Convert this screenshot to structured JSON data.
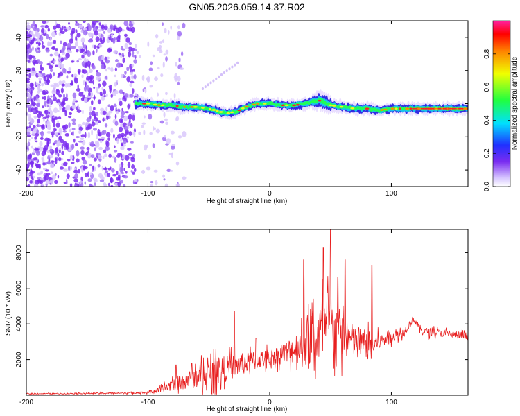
{
  "figure_title": "GN05.2026.059.14.37.R02",
  "colors": {
    "snr_line": "#e82020",
    "scatter_noise": "#7a2cf0",
    "axis": "#000000"
  },
  "chart_data": [
    {
      "type": "heatmap",
      "name": "spectrogram",
      "xlabel": "Height of straight line (km)",
      "ylabel": "Frequency (Hz)",
      "xlim": [
        -200,
        163
      ],
      "ylim": [
        -50,
        50
      ],
      "xticks": [
        -200,
        -100,
        0,
        100
      ],
      "yticks": [
        -40,
        -20,
        0,
        20,
        40
      ],
      "ridge": {
        "x": [
          -110,
          -100,
          -90,
          -80,
          -70,
          -60,
          -50,
          -45,
          -40,
          -35,
          -30,
          -25,
          -20,
          -10,
          0,
          10,
          20,
          30,
          40,
          45,
          50,
          60,
          70,
          80,
          90,
          100,
          120,
          140,
          163
        ],
        "y": [
          0,
          0,
          -1,
          -1,
          -2,
          -2,
          -3,
          -4,
          -5,
          -6,
          -5,
          -4,
          -2,
          0,
          0,
          -1,
          -1,
          0,
          2,
          1,
          -1,
          -2,
          -3,
          -3,
          -4,
          -3,
          -3,
          -3,
          -3
        ]
      },
      "colorbar": {
        "label": "Normalized spectral amplitude",
        "range": [
          0,
          1
        ],
        "ticks": [
          0.0,
          0.2,
          0.4,
          0.6,
          0.8
        ]
      }
    },
    {
      "type": "line",
      "name": "snr",
      "xlabel": "Height of straight line (km)",
      "ylabel": "SNR (10 * v/v)",
      "xlim": [
        -200,
        163
      ],
      "ylim": [
        0,
        9300
      ],
      "xticks": [
        -200,
        -100,
        0,
        100
      ],
      "yticks": [
        2000,
        4000,
        6000,
        8000
      ],
      "envelope": {
        "x": [
          -200,
          -150,
          -120,
          -100,
          -90,
          -80,
          -70,
          -60,
          -50,
          -40,
          -30,
          -20,
          -10,
          0,
          10,
          20,
          25,
          30,
          40,
          45,
          50,
          55,
          60,
          70,
          80,
          85,
          90,
          100,
          110,
          118,
          125,
          140,
          163
        ],
        "base": [
          80,
          100,
          120,
          150,
          300,
          600,
          800,
          1000,
          1200,
          1400,
          1600,
          1800,
          2000,
          2100,
          2300,
          2600,
          2800,
          3000,
          3400,
          3600,
          3700,
          3500,
          3300,
          3000,
          2900,
          2800,
          3000,
          3300,
          3500,
          4300,
          3600,
          3500,
          3300
        ],
        "noise": [
          40,
          60,
          80,
          100,
          300,
          700,
          900,
          1100,
          1500,
          1400,
          1200,
          1100,
          1000,
          900,
          1000,
          1500,
          1800,
          2800,
          3200,
          3600,
          3200,
          3000,
          2400,
          1600,
          1500,
          1200,
          800,
          600,
          500,
          300,
          400,
          400,
          400
        ]
      },
      "spikes": [
        {
          "x": -77,
          "y": 1700
        },
        {
          "x": -64,
          "y": 1800
        },
        {
          "x": -29,
          "y": 4700
        },
        {
          "x": -11,
          "y": 3200
        },
        {
          "x": 28,
          "y": 7600
        },
        {
          "x": 44,
          "y": 8300
        },
        {
          "x": 50,
          "y": 9300
        },
        {
          "x": 56,
          "y": 6600
        },
        {
          "x": 62,
          "y": 7600
        },
        {
          "x": 84,
          "y": 7300
        }
      ]
    }
  ]
}
